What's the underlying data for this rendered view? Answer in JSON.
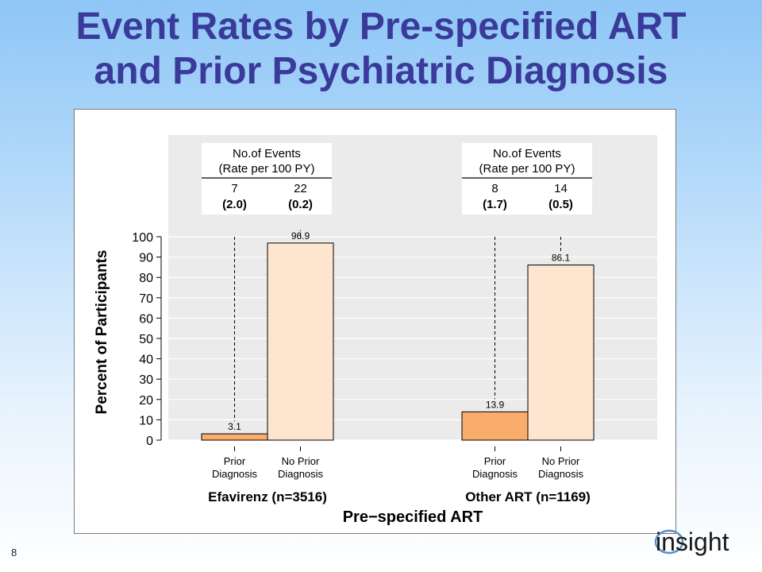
{
  "slide": {
    "title_line1": "Event Rates by Pre-specified ART",
    "title_line2": "and Prior Psychiatric Diagnosis",
    "slide_number": "8",
    "logo_text": "insight"
  },
  "colors": {
    "title": "#3a3a9a",
    "prior_bar": "#f9ad6b",
    "no_prior_bar": "#fde5cf",
    "panel_bg": "#ebebeb"
  },
  "chart_data": {
    "type": "bar",
    "ylabel": "Percent of Participants",
    "xlabel": "Pre−specified ART",
    "ylim": [
      0,
      100
    ],
    "yticks": [
      0,
      10,
      20,
      30,
      40,
      50,
      60,
      70,
      80,
      90,
      100
    ],
    "groups": [
      {
        "name": "Efavirenz (n=3516)",
        "table_header_line1": "No.of Events",
        "table_header_line2": "(Rate per 100 PY)",
        "bars": [
          {
            "category_line1": "Prior",
            "category_line2": "Diagnosis",
            "value": 3.1,
            "label": "3.1",
            "events": "7",
            "rate": "(2.0)"
          },
          {
            "category_line1": "No Prior",
            "category_line2": "Diagnosis",
            "value": 96.9,
            "label": "96.9",
            "events": "22",
            "rate": "(0.2)"
          }
        ]
      },
      {
        "name": "Other ART (n=1169)",
        "table_header_line1": "No.of Events",
        "table_header_line2": "(Rate per 100 PY)",
        "bars": [
          {
            "category_line1": "Prior",
            "category_line2": "Diagnosis",
            "value": 13.9,
            "label": "13.9",
            "events": "8",
            "rate": "(1.7)"
          },
          {
            "category_line1": "No Prior",
            "category_line2": "Diagnosis",
            "value": 86.1,
            "label": "86.1",
            "events": "14",
            "rate": "(0.5)"
          }
        ]
      }
    ]
  }
}
